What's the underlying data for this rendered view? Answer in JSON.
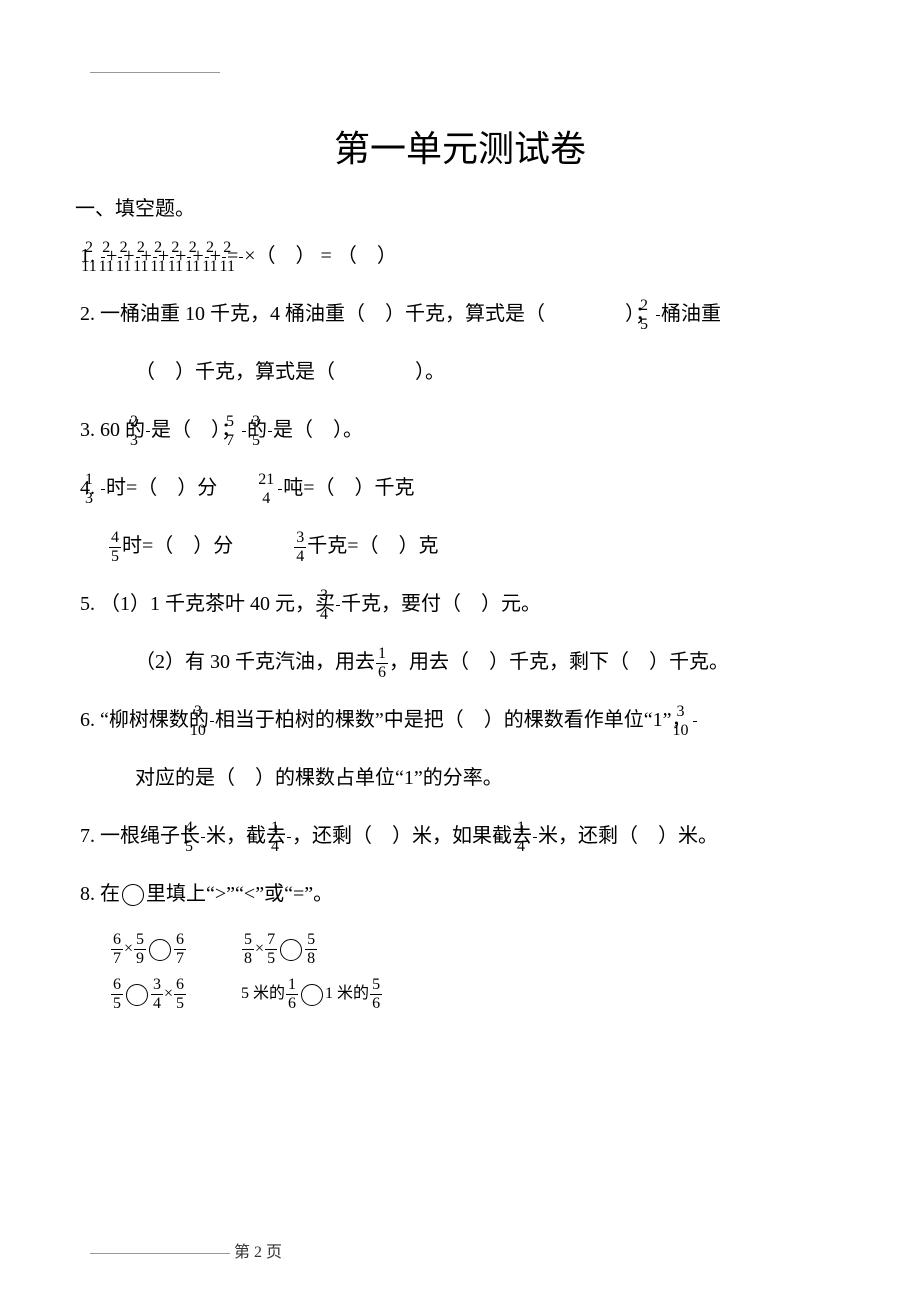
{
  "colors": {
    "text": "#000000",
    "bg": "#ffffff",
    "rule": "#999999"
  },
  "title": "第一单元测试卷",
  "section_heading": "一、填空题。",
  "q1": {
    "num": "1.",
    "frac_num": "2",
    "frac_den": "11",
    "times": "×",
    "eq": "=",
    "paren_l": "（",
    "paren_r": "）",
    "paren_l2": "（",
    "paren_r2": "）",
    "op": "+"
  },
  "q2": {
    "num": "2.",
    "t1": "一桶油重 10 千克，4 桶油重（　）千克，算式是（　　　　）；",
    "frac_num": "2",
    "frac_den": "5",
    "t2": "桶油重",
    "line2": "（　）千克，算式是（　　　　）。"
  },
  "q3": {
    "num": "3.",
    "p1a": "60 的",
    "f1n": "2",
    "f1d": "3",
    "p1b": "是（　）；",
    "f2n": "5",
    "f2d": "7",
    "p2a": "的",
    "f3n": "3",
    "f3d": "5",
    "p2b": "是（　）。"
  },
  "q4": {
    "num": "4.",
    "f1n": "1",
    "f1d": "3",
    "u1a": "时=（　）分",
    "f2n": "21",
    "f2d": "4",
    "u2a": "吨=（　）千克",
    "f3n": "4",
    "f3d": "5",
    "u3a": "时=（　）分",
    "f4n": "3",
    "f4d": "4",
    "u4a": "千克=（　）克"
  },
  "q5": {
    "num": "5.",
    "p1a": "（1）1 千克茶叶 40 元，买",
    "f1n": "3",
    "f1d": "4",
    "p1b": "千克，要付（　）元。",
    "p2a": "（2）有 30 千克汽油，用去",
    "f2n": "1",
    "f2d": "6",
    "p2b": "，用去（　）千克，剩下（　）千克。"
  },
  "q6": {
    "num": "6.",
    "p1a": "“柳树棵数的",
    "f1n": "3",
    "f1d": "10",
    "p1b": "相当于柏树的棵数”中是把（　）的棵数看作单位“1”，",
    "f2n": "3",
    "f2d": "10",
    "line2": "对应的是（　）的棵数占单位“1”的分率。"
  },
  "q7": {
    "num": "7.",
    "p1": "一根绳子长",
    "f1n": "4",
    "f1d": "5",
    "p2": "米，截去",
    "f2n": "1",
    "f2d": "4",
    "p3": "，还剩（　）米，如果截去",
    "f3n": "1",
    "f3d": "4",
    "p4": "米，还剩（　）米。"
  },
  "q8": {
    "num": "8.",
    "heading_a": "在",
    "heading_b": "里填上“>”“<”或“=”。",
    "r1": {
      "a_f1n": "6",
      "a_f1d": "7",
      "a_op": "×",
      "a_f2n": "5",
      "a_f2d": "9",
      "a_f3n": "6",
      "a_f3d": "7",
      "b_f1n": "5",
      "b_f1d": "8",
      "b_op": "×",
      "b_f2n": "7",
      "b_f2d": "5",
      "b_f3n": "5",
      "b_f3d": "8"
    },
    "r2": {
      "a_f1n": "6",
      "a_f1d": "5",
      "a_f2n": "3",
      "a_f2d": "4",
      "a_op": "×",
      "a_f3n": "6",
      "a_f3d": "5",
      "b_t1": "5 米的",
      "b_f1n": "1",
      "b_f1d": "6",
      "b_t2": "1 米的",
      "b_f2n": "5",
      "b_f2d": "6"
    }
  },
  "footer": "第 2 页"
}
